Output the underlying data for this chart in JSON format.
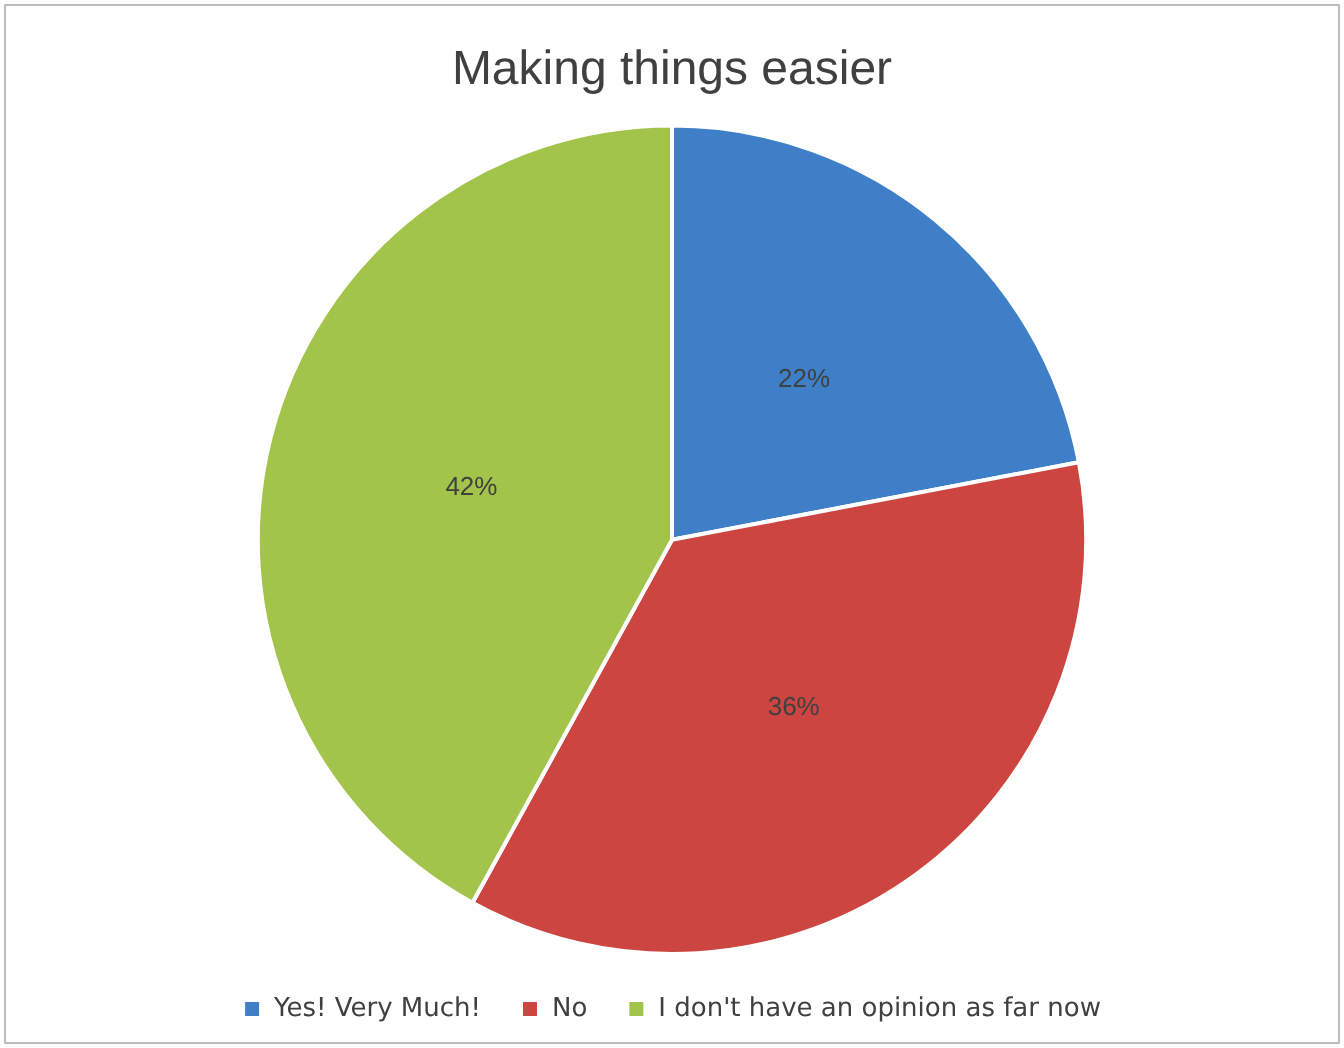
{
  "chart_data": {
    "type": "pie",
    "title": "Making things easier",
    "categories": [
      "Yes! Very Much!",
      "No",
      "I don't have an opinion as far now"
    ],
    "values": [
      22,
      36,
      42
    ],
    "value_labels": [
      "22%",
      "36%",
      "42%"
    ],
    "colors": [
      "#3f7fc8",
      "#cc4540",
      "#a2c44a"
    ],
    "legend": "bottom"
  }
}
